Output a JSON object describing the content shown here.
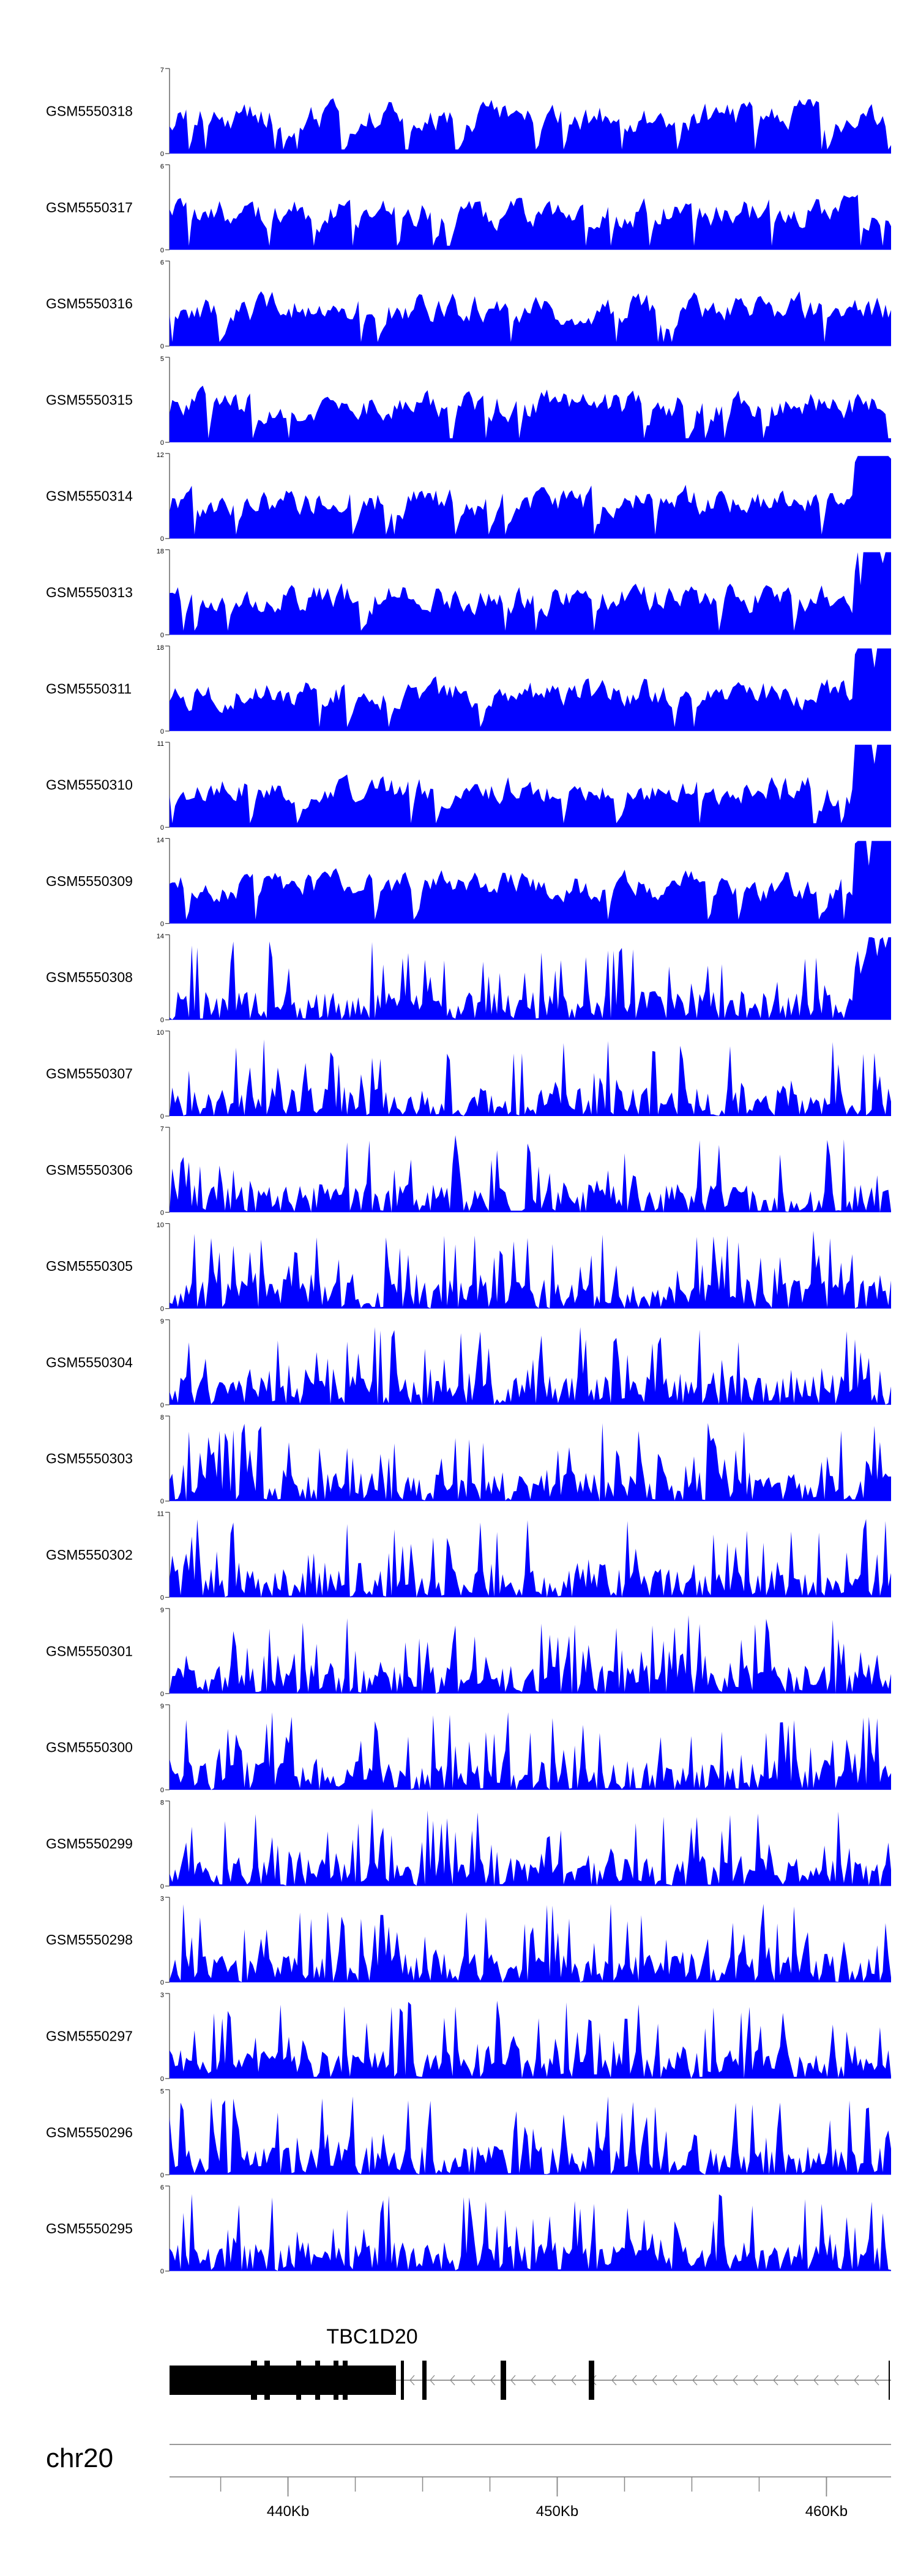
{
  "chart_data": {
    "type": "area",
    "title": "",
    "series_color": "#0000ff",
    "series": [
      {
        "name": "GSM5550318",
        "ymax": "7"
      },
      {
        "name": "GSM5550317",
        "ymax": "6"
      },
      {
        "name": "GSM5550316",
        "ymax": "6"
      },
      {
        "name": "GSM5550315",
        "ymax": "5"
      },
      {
        "name": "GSM5550314",
        "ymax": "12"
      },
      {
        "name": "GSM5550313",
        "ymax": "18"
      },
      {
        "name": "GSM5550311",
        "ymax": "18"
      },
      {
        "name": "GSM5550310",
        "ymax": "11"
      },
      {
        "name": "GSM5550309",
        "ymax": "14"
      },
      {
        "name": "GSM5550308",
        "ymax": "14"
      },
      {
        "name": "GSM5550307",
        "ymax": "10"
      },
      {
        "name": "GSM5550306",
        "ymax": "7"
      },
      {
        "name": "GSM5550305",
        "ymax": "10"
      },
      {
        "name": "GSM5550304",
        "ymax": "9"
      },
      {
        "name": "GSM5550303",
        "ymax": "8"
      },
      {
        "name": "GSM5550302",
        "ymax": "11"
      },
      {
        "name": "GSM5550301",
        "ymax": "9"
      },
      {
        "name": "GSM5550300",
        "ymax": "9"
      },
      {
        "name": "GSM5550299",
        "ymax": "8"
      },
      {
        "name": "GSM5550298",
        "ymax": "3"
      },
      {
        "name": "GSM5550297",
        "ymax": "3"
      },
      {
        "name": "GSM5550296",
        "ymax": "5"
      },
      {
        "name": "GSM5550295",
        "ymax": "6"
      }
    ],
    "ymin_label": "0",
    "gene": {
      "name": "TBC1D20",
      "strand": "-"
    },
    "chromosome": "chr20",
    "x_axis": {
      "range_kb": [
        435.6,
        462.4
      ],
      "tick_labels": [
        "440Kb",
        "450Kb",
        "460Kb"
      ],
      "tick_values_kb": [
        440,
        450,
        460
      ],
      "minor_tick_step_kb": 2.5
    }
  }
}
